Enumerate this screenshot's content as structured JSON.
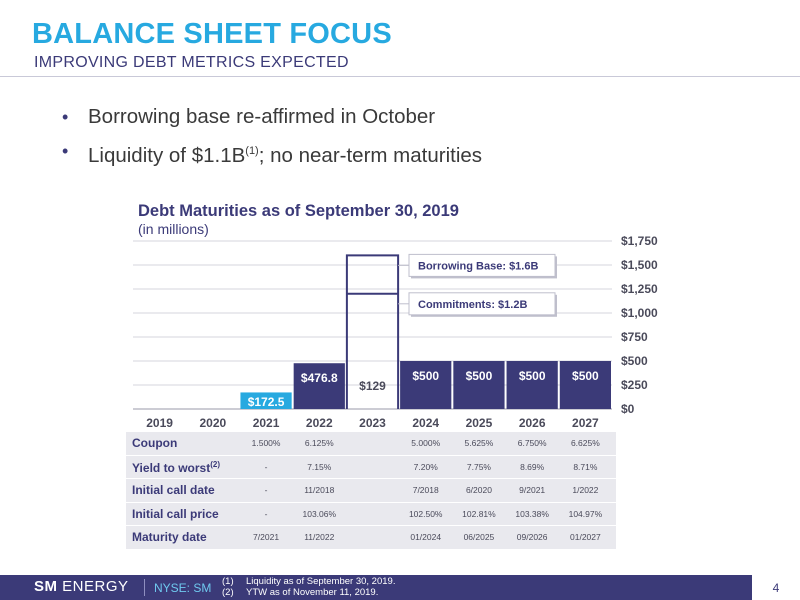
{
  "header": {
    "title": "BALANCE SHEET FOCUS",
    "subtitle": "IMPROVING DEBT METRICS EXPECTED"
  },
  "bullets": [
    {
      "text": "Borrowing base re-affirmed in October",
      "sup": "",
      "suffix": ""
    },
    {
      "text": "Liquidity of $1.1B",
      "sup": "(1)",
      "suffix": "; no near-term maturities"
    }
  ],
  "chart_data": {
    "type": "bar",
    "title": "Debt Maturities as of September 30, 2019",
    "subtitle": "(in millions)",
    "categories": [
      "2019",
      "2020",
      "2021",
      "2022",
      "2023",
      "2024",
      "2025",
      "2026",
      "2027"
    ],
    "values": [
      0,
      0,
      172.5,
      476.8,
      129,
      500,
      500,
      500,
      500
    ],
    "labels": [
      "",
      "",
      "$172.5",
      "$476.8",
      "$129",
      "$500",
      "$500",
      "$500",
      "$500"
    ],
    "bar_colors": [
      "#3b3a78",
      "#3b3a78",
      "#27a9e0",
      "#3b3a78",
      "#3b3a78",
      "#3b3a78",
      "#3b3a78",
      "#3b3a78",
      "#3b3a78"
    ],
    "ylim": [
      0,
      1750
    ],
    "yticks": [
      0,
      250,
      500,
      750,
      1000,
      1250,
      1500,
      1750
    ],
    "ytick_labels": [
      "$0",
      "$250",
      "$500",
      "$750",
      "$1,000",
      "$1,250",
      "$1,500",
      "$1,750"
    ],
    "y_axis_side": "right",
    "grid": true,
    "credit_facility": {
      "category": "2023",
      "borrowing_base": 1600,
      "commitments": 1200,
      "borrowing_base_label": "Borrowing Base: $1.6B",
      "commitments_label": "Commitments: $1.2B"
    }
  },
  "table": {
    "rows": [
      {
        "label": "Coupon",
        "sup": "",
        "values": [
          "",
          "",
          "1.500%",
          "6.125%",
          "",
          "5.000%",
          "5.625%",
          "6.750%",
          "6.625%"
        ]
      },
      {
        "label": "Yield to worst",
        "sup": "(2)",
        "values": [
          "",
          "",
          "-",
          "7.15%",
          "",
          "7.20%",
          "7.75%",
          "8.69%",
          "8.71%"
        ]
      },
      {
        "label": "Initial call date",
        "sup": "",
        "values": [
          "",
          "",
          "-",
          "11/2018",
          "",
          "7/2018",
          "6/2020",
          "9/2021",
          "1/2022"
        ]
      },
      {
        "label": "Initial call price",
        "sup": "",
        "values": [
          "",
          "",
          "-",
          "103.06%",
          "",
          "102.50%",
          "102.81%",
          "103.38%",
          "104.97%"
        ]
      },
      {
        "label": "Maturity date",
        "sup": "",
        "values": [
          "",
          "",
          "7/2021",
          "11/2022",
          "",
          "01/2024",
          "06/2025",
          "09/2026",
          "01/2027"
        ]
      }
    ]
  },
  "footer": {
    "logo_bold": "SM",
    "logo_rest": "ENERGY",
    "ticker": "NYSE: SM",
    "footnotes": [
      {
        "num": "(1)",
        "text": "Liquidity as of September 30, 2019."
      },
      {
        "num": "(2)",
        "text": "YTW as of November 11, 2019."
      }
    ],
    "page": "4"
  },
  "colors": {
    "navy": "#3b3a78",
    "cyan": "#27a9e0",
    "grid": "#d4d4dc",
    "table_bg": "#e9e9ee"
  }
}
